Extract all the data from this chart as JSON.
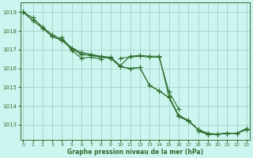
{
  "xlabel": "Graphe pression niveau de la mer (hPa)",
  "background_color": "#cdf5f0",
  "grid_color": "#99ccbb",
  "line_color": "#2d6e2d",
  "x_ticks": [
    0,
    1,
    2,
    3,
    4,
    5,
    6,
    7,
    8,
    9,
    10,
    11,
    12,
    13,
    14,
    15,
    16,
    17,
    18,
    19,
    20,
    21,
    22,
    23
  ],
  "y_ticks": [
    1013,
    1014,
    1015,
    1016,
    1017,
    1018,
    1019
  ],
  "ylim": [
    1012.2,
    1019.5
  ],
  "xlim": [
    -0.3,
    23.3
  ],
  "series": [
    [
      1019.0,
      1018.7,
      1018.2,
      1017.8,
      1017.55,
      1017.1,
      1016.85,
      1016.75,
      1016.65,
      1016.6,
      1016.15,
      1016.65,
      1016.7,
      1016.65,
      1016.65,
      1014.5,
      1013.5,
      1013.25,
      1012.75,
      1012.55,
      1012.5,
      1012.55,
      1012.55,
      1012.75
    ],
    [
      1019.0,
      1018.55,
      1018.15,
      1017.7,
      1017.5,
      1017.05,
      1016.75,
      1016.7,
      1016.6,
      1016.55,
      1016.1,
      1016.0,
      1016.05,
      1015.1,
      1014.8,
      1014.45,
      1013.45,
      1013.2,
      1012.75,
      1012.5,
      1012.5,
      1012.55,
      1012.55,
      1012.75
    ],
    [
      1019.0,
      1018.55,
      1018.15,
      1017.7,
      1017.5,
      1017.05,
      1016.75,
      1016.7,
      1016.6,
      1016.55,
      1016.1,
      1016.0,
      1016.05,
      1015.1,
      1014.8,
      1014.45,
      1013.45,
      1013.2,
      1012.75,
      1012.5,
      1012.5,
      1012.55,
      1012.55,
      1012.8
    ],
    [
      1019.0,
      null,
      null,
      null,
      1017.65,
      1016.95,
      1016.55,
      1016.6,
      1016.5,
      null,
      1016.55,
      1016.6,
      1016.65,
      1016.6,
      1016.6,
      1014.75,
      1013.85,
      null,
      1012.65,
      1012.5,
      1012.5,
      1012.55,
      1012.55,
      1012.8
    ]
  ],
  "figsize": [
    3.2,
    2.0
  ],
  "dpi": 100
}
